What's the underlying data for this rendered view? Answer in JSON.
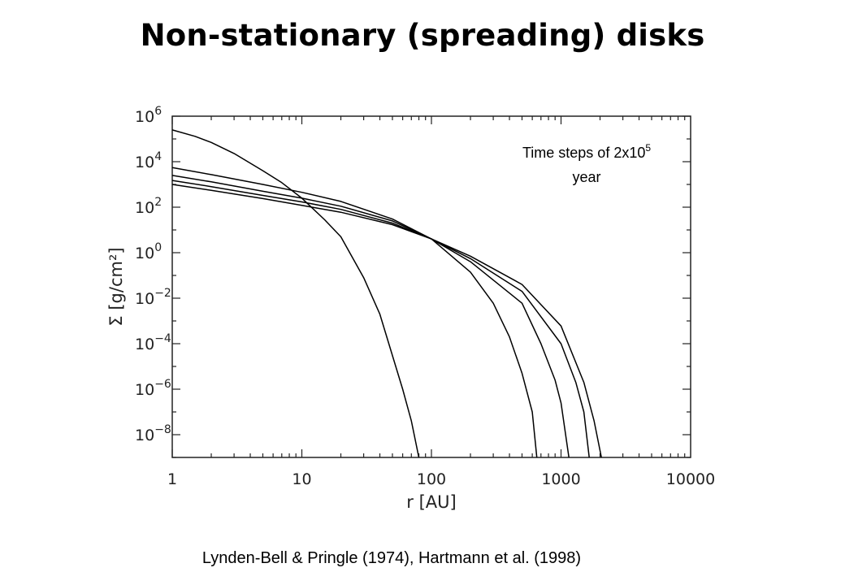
{
  "title": "Non-stationary (spreading) disks",
  "citation": "Lynden-Bell & Pringle (1974), Hartmann et al. (1998)",
  "chart_data": {
    "type": "line",
    "x_scale": "log",
    "y_scale": "log",
    "xlabel": "r [AU]",
    "ylabel": "Σ [g/cm²]",
    "xlim": [
      1,
      10000
    ],
    "ylim": [
      1e-09,
      1000000.0
    ],
    "x_ticks": [
      {
        "value": 1,
        "label": "1"
      },
      {
        "value": 10,
        "label": "10"
      },
      {
        "value": 100,
        "label": "100"
      },
      {
        "value": 1000,
        "label": "1000"
      },
      {
        "value": 10000,
        "label": "10000"
      }
    ],
    "y_ticks": [
      {
        "value": 1000000.0,
        "mant": "10",
        "exp": "6"
      },
      {
        "value": 10000.0,
        "mant": "10",
        "exp": "4"
      },
      {
        "value": 100.0,
        "mant": "10",
        "exp": "2"
      },
      {
        "value": 1.0,
        "mant": "10",
        "exp": "0"
      },
      {
        "value": 0.01,
        "mant": "10",
        "exp": "−2"
      },
      {
        "value": 0.0001,
        "mant": "10",
        "exp": "−4"
      },
      {
        "value": 1e-06,
        "mant": "10",
        "exp": "−6"
      },
      {
        "value": 1e-08,
        "mant": "10",
        "exp": "−8"
      }
    ],
    "annotation": {
      "line1": "Time steps of 2x10",
      "sup": "5",
      "line2": "year"
    },
    "line_color": "#000000",
    "series": [
      {
        "x": [
          1,
          1.5,
          2,
          3,
          5,
          7,
          10,
          15,
          20,
          30,
          40,
          50,
          60,
          70,
          80
        ],
        "y": [
          250000.0,
          130000.0,
          70000.0,
          23000.0,
          4000.0,
          1200.0,
          250,
          28,
          5,
          0.08,
          0.002,
          3e-05,
          1e-06,
          4e-08,
          1e-09
        ]
      },
      {
        "x": [
          1,
          2,
          5,
          10,
          20,
          50,
          100,
          200,
          300,
          400,
          500,
          600,
          650
        ],
        "y": [
          5500,
          2700,
          1000,
          450,
          180,
          30,
          4,
          0.14,
          0.006,
          0.0002,
          5e-06,
          1e-07,
          1e-09
        ]
      },
      {
        "x": [
          1,
          2,
          5,
          10,
          20,
          50,
          100,
          200,
          500,
          700,
          900,
          1000,
          1150
        ],
        "y": [
          2500,
          1300,
          500,
          250,
          110,
          25,
          4,
          0.4,
          0.006,
          0.0001,
          2.5e-06,
          2.5e-07,
          1e-09
        ]
      },
      {
        "x": [
          1,
          2,
          5,
          10,
          20,
          50,
          100,
          200,
          500,
          1000,
          1300,
          1500,
          1650
        ],
        "y": [
          1500,
          800,
          330,
          170,
          80,
          20,
          4,
          0.55,
          0.02,
          0.0001,
          2e-06,
          1e-07,
          1e-09
        ]
      },
      {
        "x": [
          1,
          2,
          5,
          10,
          20,
          50,
          100,
          200,
          500,
          1000,
          1500,
          1800,
          2050
        ],
        "y": [
          1000,
          550,
          240,
          120,
          60,
          17,
          4,
          0.7,
          0.04,
          0.0006,
          2e-06,
          4e-08,
          1e-09
        ]
      }
    ]
  }
}
